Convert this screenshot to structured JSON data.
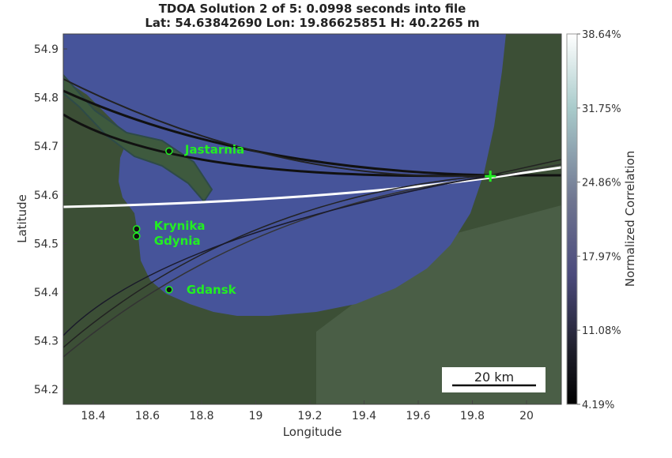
{
  "title": {
    "line1": "TDOA Solution 2 of 5: 0.0998 seconds into file",
    "line2": "Lat: 54.63842690 Lon: 19.86625851 H: 40.2265 m"
  },
  "axes": {
    "xlabel": "Longitude",
    "ylabel": "Latitude",
    "xticks": [
      "18.4",
      "18.6",
      "18.8",
      "19",
      "19.2",
      "19.4",
      "19.6",
      "19.8",
      "20"
    ],
    "yticks": [
      "54.9",
      "54.8",
      "54.7",
      "54.6",
      "54.5",
      "54.4",
      "54.3",
      "54.2"
    ]
  },
  "colorbar": {
    "label": "Normalized Correlation",
    "ticks": [
      "38.64%",
      "31.75%",
      "24.86%",
      "17.97%",
      "11.08%",
      "4.19%"
    ],
    "colors": [
      "#ffffff",
      "#9fc4c4",
      "#6f7390",
      "#4a4a7a",
      "#222233",
      "#000000"
    ]
  },
  "receivers": [
    {
      "name": "Jastarnia",
      "lat": 54.69,
      "lon": 18.68
    },
    {
      "name": "Krynika",
      "lat": 54.53,
      "lon": 18.56
    },
    {
      "name": "Gdynia",
      "lat": 54.515,
      "lon": 18.56
    },
    {
      "name": "Gdansk",
      "lat": 54.405,
      "lon": 18.68
    }
  ],
  "solution": {
    "lat": 54.6384269,
    "lon": 19.86625851,
    "marker_color": "#22ee22"
  },
  "scalebar": {
    "label": "20 km"
  },
  "colors": {
    "water": "#46549a",
    "land": "#3c4f36",
    "marker": "#22ee22"
  }
}
